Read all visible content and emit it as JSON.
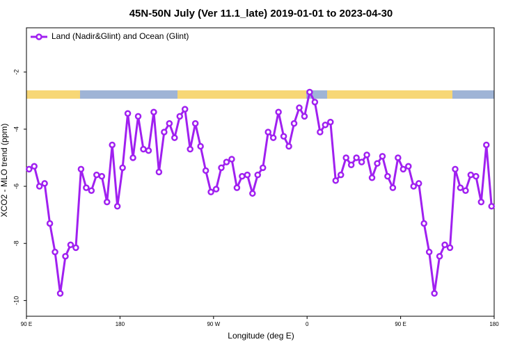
{
  "chart_data": {
    "type": "line",
    "title": "45N-50N July (Ver 11.1_late)   2019-01-01 to 2023-04-30",
    "x_label": "Longitude (deg E)",
    "y_label": "XCO2 - MLO trend (ppm)",
    "legend": "top-left",
    "xlim": [
      90,
      540
    ],
    "ylim": [
      -10.55,
      -0.45
    ],
    "xticks": [
      {
        "value": 90,
        "label": "90 E"
      },
      {
        "value": 180,
        "label": "180"
      },
      {
        "value": 270,
        "label": "90 W"
      },
      {
        "value": 360,
        "label": "0"
      },
      {
        "value": 450,
        "label": "90 E"
      },
      {
        "value": 540,
        "label": "180"
      }
    ],
    "yticks": [
      -10,
      -8,
      -6,
      -4,
      -2
    ],
    "x": [
      92.5,
      97.5,
      102.5,
      107.5,
      112.5,
      117.5,
      122.5,
      127.5,
      132.5,
      137.5,
      142.5,
      147.5,
      152.5,
      157.5,
      162.5,
      167.5,
      172.5,
      177.5,
      182.5,
      187.5,
      192.5,
      197.5,
      202.5,
      207.5,
      212.5,
      217.5,
      222.5,
      227.5,
      232.5,
      237.5,
      242.5,
      247.5,
      252.5,
      257.5,
      262.5,
      267.5,
      272.5,
      277.5,
      282.5,
      287.5,
      292.5,
      297.5,
      302.5,
      307.5,
      312.5,
      317.5,
      322.5,
      327.5,
      332.5,
      337.5,
      342.5,
      347.5,
      352.5,
      357.5,
      362.5,
      367.5,
      372.5,
      377.5,
      382.5,
      387.5,
      392.5,
      397.5,
      402.5,
      407.5,
      412.5,
      417.5,
      422.5,
      427.5,
      432.5,
      437.5,
      442.5,
      447.5,
      452.5,
      457.5,
      462.5,
      467.5,
      472.5,
      477.5,
      482.5,
      487.5,
      492.5,
      497.5,
      502.5,
      507.5,
      512.5,
      517.5,
      522.5,
      527.5,
      532.5,
      537.5
    ],
    "series": [
      {
        "name": "Land (Nadir&Glint) and Ocean (Glint)",
        "color": "#a020f0",
        "values": [
          -5.4,
          -5.3,
          -6.0,
          -5.9,
          -7.3,
          -8.3,
          -9.75,
          -8.45,
          -8.05,
          -8.15,
          -5.4,
          -6.05,
          -6.15,
          -5.6,
          -5.65,
          -6.55,
          -4.55,
          -6.7,
          -5.35,
          -3.45,
          -5.0,
          -3.55,
          -4.7,
          -4.75,
          -3.4,
          -5.5,
          -4.1,
          -3.8,
          -4.3,
          -3.55,
          -3.3,
          -4.7,
          -3.8,
          -4.6,
          -5.45,
          -6.2,
          -6.1,
          -5.35,
          -5.15,
          -5.05,
          -6.05,
          -5.65,
          -5.6,
          -6.25,
          -5.6,
          -5.35,
          -4.1,
          -4.3,
          -3.4,
          -4.25,
          -4.6,
          -3.8,
          -3.25,
          -3.55,
          -2.7,
          -3.05,
          -4.1,
          -3.85,
          -3.75,
          -5.8,
          -5.6,
          -5.0,
          -5.25,
          -5.0,
          -5.15,
          -4.9,
          -5.7,
          -5.2,
          -4.95,
          -5.65,
          -6.05,
          -5.0,
          -5.4,
          -5.3,
          -6.0,
          -5.9,
          -7.3,
          -8.3,
          -9.75,
          -8.45,
          -8.05,
          -8.15,
          -5.4,
          -6.05,
          -6.15,
          -5.6,
          -5.65,
          -6.55,
          -4.55,
          -6.7
        ]
      }
    ]
  }
}
